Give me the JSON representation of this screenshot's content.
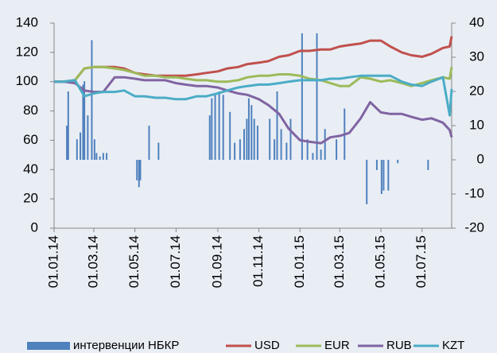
{
  "chart_data": {
    "type": "line",
    "x": [
      "01.01.14",
      "15.01.14",
      "01.02.14",
      "15.02.14",
      "01.03.14",
      "15.03.14",
      "01.04.14",
      "15.04.14",
      "01.05.14",
      "15.05.14",
      "01.06.14",
      "15.06.14",
      "01.07.14",
      "15.07.14",
      "01.08.14",
      "15.08.14",
      "01.09.14",
      "15.09.14",
      "01.10.14",
      "15.10.14",
      "01.11.14",
      "15.11.14",
      "01.12.14",
      "15.12.14",
      "01.01.15",
      "15.01.15",
      "01.02.15",
      "15.02.15",
      "01.03.15",
      "15.03.15",
      "01.04.15",
      "15.04.15",
      "01.05.15",
      "15.05.15",
      "01.06.15",
      "15.06.15",
      "01.07.15",
      "15.07.15",
      "01.08.15",
      "11.08.15",
      "14.08.15"
    ],
    "xlim": [
      "01.01.14",
      "14.08.15"
    ],
    "xticks": [
      "01.01.14",
      "01.03.14",
      "01.05.14",
      "01.07.14",
      "01.09.14",
      "01.11.14",
      "01.01.15",
      "01.03.15",
      "01.05.15",
      "01.07.15"
    ],
    "ylim": [
      0,
      140
    ],
    "yticks": [
      0,
      20,
      40,
      60,
      80,
      100,
      120,
      140
    ],
    "y2lim": [
      -20,
      40
    ],
    "y2ticks": [
      -20,
      -10,
      0,
      10,
      20,
      30,
      40
    ],
    "series": [
      {
        "name": "интервенции НБКР",
        "type": "bar",
        "axis": "y2",
        "color": "#4f81bd",
        "x": [
          "20.01.14",
          "22.01.14",
          "04.02.14",
          "09.02.14",
          "13.02.14",
          "15.02.14",
          "20.02.14",
          "26.02.14",
          "02.03.14",
          "05.03.14",
          "10.03.14",
          "15.03.14",
          "20.03.14",
          "04.05.14",
          "07.05.14",
          "09.05.14",
          "22.05.14",
          "05.06.14",
          "20.08.14",
          "23.08.14",
          "28.08.14",
          "03.09.14",
          "09.09.14",
          "19.09.14",
          "26.09.14",
          "04.10.14",
          "10.10.14",
          "14.10.14",
          "17.10.14",
          "21.10.14",
          "25.10.14",
          "30.10.14",
          "17.11.14",
          "24.11.14",
          "28.11.14",
          "04.12.14",
          "12.12.14",
          "18.12.14",
          "04.01.15",
          "12.01.15",
          "20.01.15",
          "26.01.15",
          "01.02.15",
          "07.02.15",
          "24.02.15",
          "08.03.15",
          "10.04.15",
          "25.04.15",
          "02.05.15",
          "05.05.15",
          "12.05.15",
          "26.05.15",
          "10.07.15"
        ],
        "values": [
          10,
          20,
          6,
          8,
          22,
          23,
          13,
          35,
          6,
          2,
          1,
          2,
          2,
          -6,
          -8,
          -6,
          10,
          5,
          13,
          18,
          19,
          20,
          19,
          14,
          5,
          6,
          9,
          12,
          18,
          16,
          12,
          10,
          12,
          6,
          20,
          9,
          5,
          12,
          37,
          6,
          2,
          37,
          3,
          9,
          6,
          15,
          -13,
          -3,
          -10,
          -9,
          -9,
          -1,
          -3
        ]
      },
      {
        "name": "USD",
        "type": "line",
        "color": "#c0504d",
        "values": [
          100,
          100,
          101,
          109,
          110,
          110,
          110,
          109,
          106,
          105,
          104,
          104,
          104,
          104,
          105,
          106,
          107,
          109,
          110,
          112,
          113,
          114,
          117,
          118,
          121,
          121,
          122,
          122,
          124,
          125,
          126,
          128,
          128,
          124,
          120,
          118,
          117,
          119,
          123,
          124,
          131
        ]
      },
      {
        "name": "EUR",
        "type": "line",
        "color": "#9bbb59",
        "values": [
          100,
          100,
          101,
          109,
          110,
          110,
          109,
          108,
          106,
          104,
          104,
          103,
          103,
          102,
          101,
          101,
          100,
          100,
          101,
          103,
          104,
          104,
          105,
          105,
          104,
          102,
          101,
          99,
          97,
          97,
          103,
          102,
          100,
          101,
          99,
          97,
          99,
          101,
          103,
          102,
          110
        ]
      },
      {
        "name": "RUB",
        "type": "line",
        "color": "#8064a2",
        "values": [
          100,
          100,
          99,
          94,
          93,
          93,
          103,
          103,
          102,
          101,
          101,
          101,
          99,
          98,
          97,
          97,
          96,
          94,
          92,
          91,
          88,
          84,
          78,
          68,
          60,
          59,
          58,
          62,
          63,
          65,
          75,
          86,
          79,
          78,
          78,
          76,
          74,
          75,
          72,
          67,
          62
        ]
      },
      {
        "name": "KZT",
        "type": "line",
        "color": "#4bacc6",
        "values": [
          100,
          100,
          101,
          90,
          92,
          93,
          93,
          94,
          90,
          90,
          89,
          89,
          88,
          88,
          90,
          90,
          92,
          94,
          96,
          97,
          98,
          98,
          99,
          100,
          101,
          101,
          101,
          102,
          102,
          103,
          104,
          104,
          104,
          104,
          100,
          98,
          97,
          100,
          103,
          77,
          95
        ]
      }
    ]
  }
}
